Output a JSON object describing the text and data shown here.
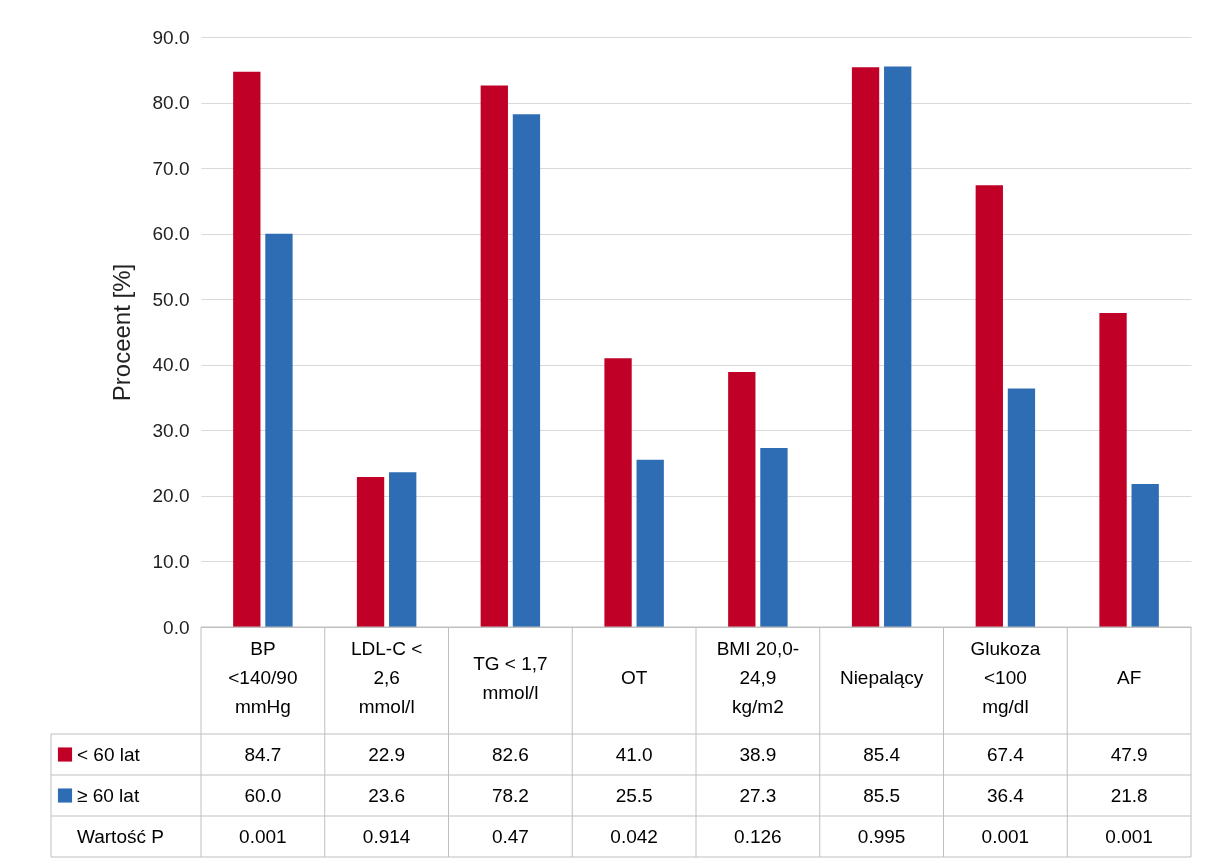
{
  "chart_data": {
    "type": "bar",
    "ylabel": "Proceent [%]",
    "categories": [
      "BP <140/90 mmHg",
      "LDL-C < 2,6 mmol/l",
      "TG < 1,7 mmol/l",
      "OT",
      "BMI 20,0- 24,9 kg/m2",
      "Niepalący",
      "Glukoza <100 mg/dl",
      "AF"
    ],
    "series": [
      {
        "name": "< 60 lat",
        "color": "#c00026",
        "values": [
          84.7,
          22.9,
          82.6,
          41.0,
          38.9,
          85.4,
          67.4,
          47.9
        ],
        "value_labels": [
          "84.7",
          "22.9",
          "82.6",
          "41.0",
          "38.9",
          "85.4",
          "67.4",
          "47.9"
        ]
      },
      {
        "name": "≥ 60 lat",
        "color": "#2e6db4",
        "values": [
          60.0,
          23.6,
          78.2,
          25.5,
          27.3,
          85.5,
          36.4,
          21.8
        ],
        "value_labels": [
          "60.0",
          "23.6",
          "78.2",
          "25.5",
          "27.3",
          "85.5",
          "36.4",
          "21.8"
        ]
      }
    ],
    "ylim": [
      0,
      90
    ],
    "yticks": [
      {
        "value": 0,
        "label": "0.0"
      },
      {
        "value": 10,
        "label": "10.0"
      },
      {
        "value": 20,
        "label": "20.0"
      },
      {
        "value": 30,
        "label": "30.0"
      },
      {
        "value": 40,
        "label": "40.0"
      },
      {
        "value": 50,
        "label": "50.0"
      },
      {
        "value": 60,
        "label": "60.0"
      },
      {
        "value": 70,
        "label": "70.0"
      },
      {
        "value": 80,
        "label": "80.0"
      },
      {
        "value": 90,
        "label": "90.0"
      }
    ],
    "grid": "y",
    "legend": "bottom",
    "annotations": [
      "Wartość P",
      "0.001",
      "0.914",
      "0.47",
      "0.042",
      "0.126",
      "0.995",
      "0.001",
      "0.001"
    ]
  }
}
